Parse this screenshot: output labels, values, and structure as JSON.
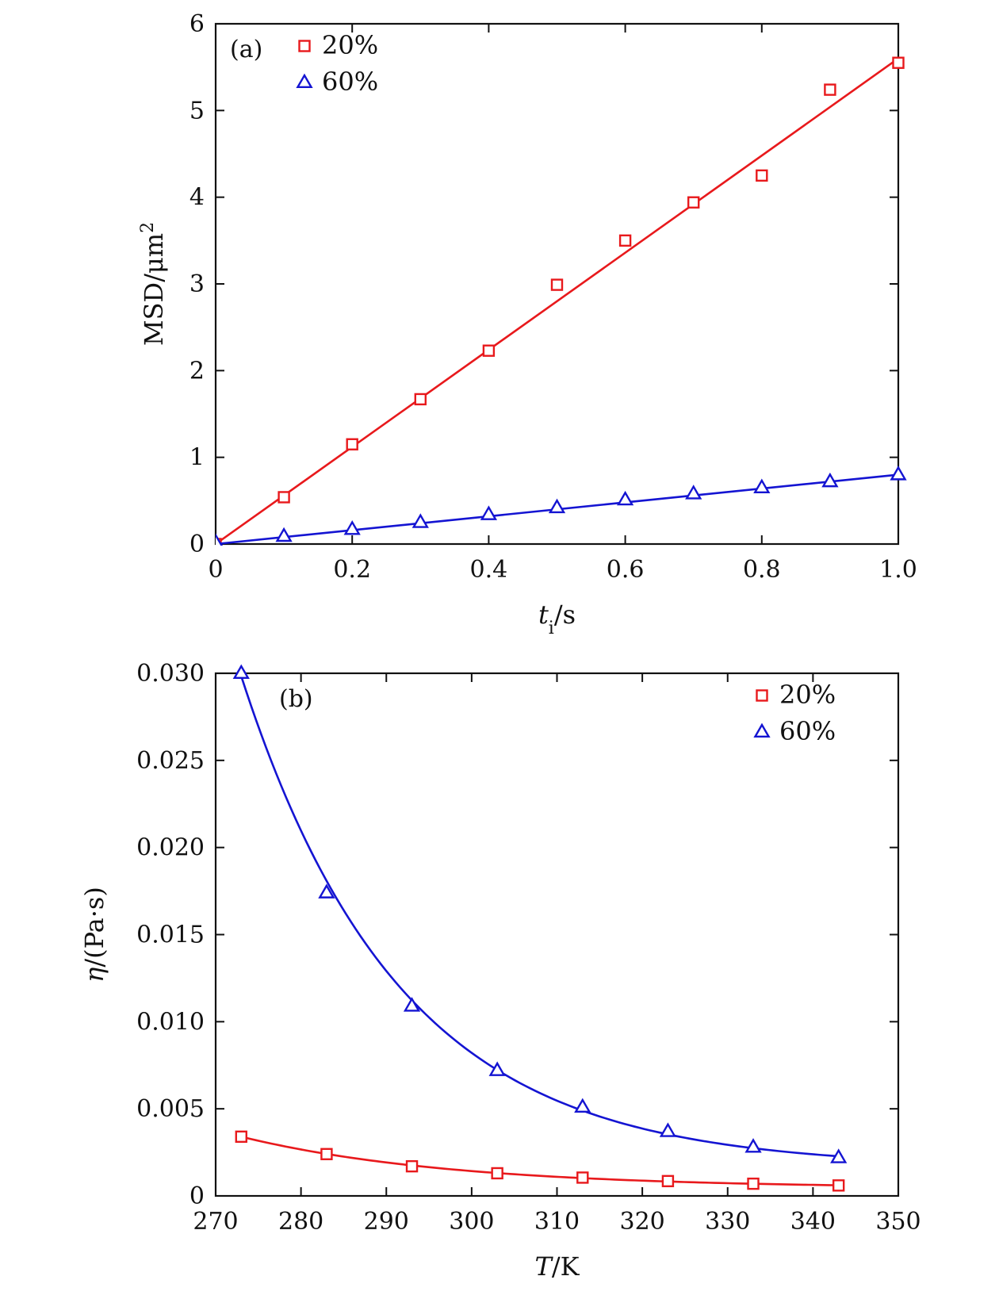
{
  "chart_data": [
    {
      "type": "scatter",
      "panel_label": "(a)",
      "xlabel": {
        "main": "t",
        "sub": "i",
        "unit": "/s"
      },
      "ylabel": {
        "main": "MSD/μm",
        "sup": "2"
      },
      "xlim": [
        0,
        1.0
      ],
      "ylim": [
        0,
        6
      ],
      "x_ticks": [
        0,
        0.2,
        0.4,
        0.6,
        0.8,
        1.0
      ],
      "x_tick_labels": [
        "0",
        "0.2",
        "0.4",
        "0.6",
        "0.8",
        "1.0"
      ],
      "y_ticks": [
        0,
        1,
        2,
        3,
        4,
        5,
        6
      ],
      "y_tick_labels": [
        "0",
        "1",
        "2",
        "3",
        "4",
        "5",
        "6"
      ],
      "legend_position": "top-left",
      "series": [
        {
          "name": "20%",
          "marker": "square",
          "color": "#e8191c",
          "x": [
            0,
            0.1,
            0.2,
            0.3,
            0.4,
            0.5,
            0.6,
            0.7,
            0.8,
            0.9,
            1.0
          ],
          "y": [
            0,
            0.54,
            1.15,
            1.67,
            2.23,
            2.99,
            3.5,
            3.94,
            4.25,
            5.24,
            5.55
          ],
          "fit": {
            "kind": "linear",
            "slope": 5.6,
            "intercept": 0
          }
        },
        {
          "name": "60%",
          "marker": "triangle",
          "color": "#1414d2",
          "x": [
            0,
            0.1,
            0.2,
            0.3,
            0.4,
            0.5,
            0.6,
            0.7,
            0.8,
            0.9,
            1.0
          ],
          "y": [
            0.02,
            0.09,
            0.17,
            0.25,
            0.34,
            0.42,
            0.51,
            0.58,
            0.65,
            0.72,
            0.8
          ],
          "fit": {
            "kind": "linear",
            "slope": 0.8,
            "intercept": 0
          }
        }
      ]
    },
    {
      "type": "scatter",
      "panel_label": "(b)",
      "xlabel": {
        "main": "T",
        "unit": "/K"
      },
      "ylabel": {
        "main": "η",
        "unit": "/(Pa·s)"
      },
      "xlim": [
        270,
        350
      ],
      "ylim": [
        0,
        0.03
      ],
      "x_ticks": [
        270,
        280,
        290,
        300,
        310,
        320,
        330,
        340,
        350
      ],
      "x_tick_labels": [
        "270",
        "280",
        "290",
        "300",
        "310",
        "320",
        "330",
        "340",
        "350"
      ],
      "y_ticks": [
        0,
        0.005,
        0.01,
        0.015,
        0.02,
        0.025,
        0.03
      ],
      "y_tick_labels": [
        "0",
        "0.005",
        "0.010",
        "0.015",
        "0.020",
        "0.025",
        "0.030"
      ],
      "legend_position": "top-right",
      "series": [
        {
          "name": "20%",
          "marker": "square",
          "color": "#e8191c",
          "x": [
            273,
            283,
            293,
            303,
            313,
            323,
            333,
            343
          ],
          "y": [
            0.0034,
            0.0024,
            0.0017,
            0.0013,
            0.00105,
            0.00085,
            0.0007,
            0.0006
          ]
        },
        {
          "name": "60%",
          "marker": "triangle",
          "color": "#1414d2",
          "x": [
            273,
            283,
            293,
            303,
            313,
            323,
            333,
            343
          ],
          "y": [
            0.03,
            0.0174,
            0.0109,
            0.0072,
            0.0051,
            0.0037,
            0.0028,
            0.0022
          ]
        }
      ]
    }
  ]
}
